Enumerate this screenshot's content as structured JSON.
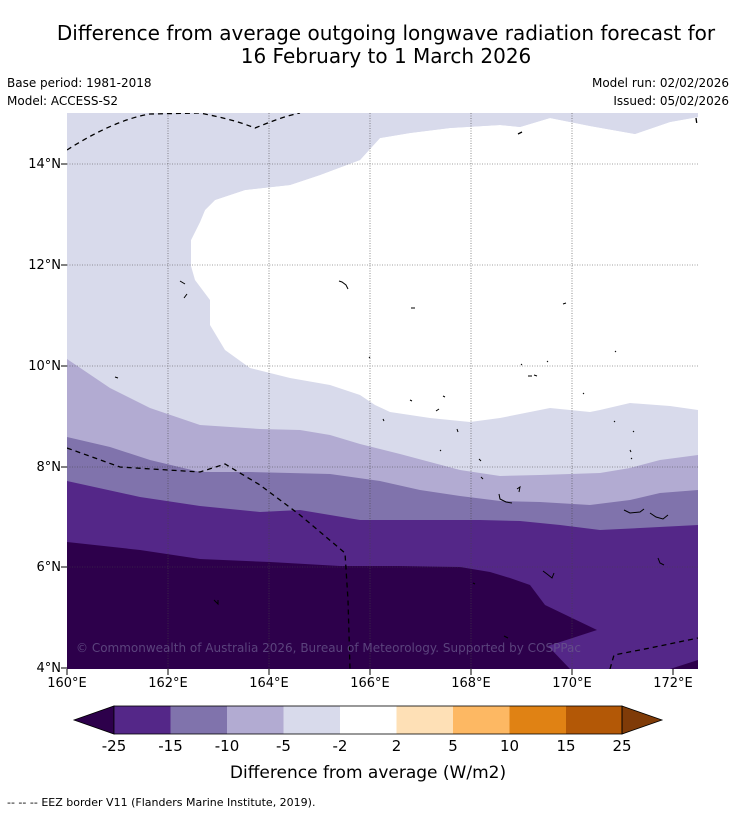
{
  "title": {
    "line1": "Difference from average outgoing longwave radiation forecast for",
    "line2": "16 February to 1 March 2026"
  },
  "meta": {
    "base_period": "Base period: 1981-2018",
    "model": "Model: ACCESS-S2",
    "model_run": "Model run: 02/02/2026",
    "issued": "Issued: 05/02/2026"
  },
  "map": {
    "lon_labels": [
      "160°E",
      "162°E",
      "164°E",
      "166°E",
      "168°E",
      "170°E",
      "172°E"
    ],
    "lat_labels": [
      "14°N",
      "12°N",
      "10°N",
      "8°N",
      "6°N",
      "4°N"
    ],
    "copyright": "© Commonwealth of Australia 2026, Bureau of Meteorology. Supported by COSPPac"
  },
  "legend": {
    "ticks": [
      "-25",
      "-15",
      "-10",
      "-5",
      "-2",
      "2",
      "5",
      "10",
      "15",
      "25"
    ],
    "colors": [
      "#2d004b",
      "#542788",
      "#8073ac",
      "#b2abd2",
      "#d8daeb",
      "#ffffff",
      "#fee0b6",
      "#fdb863",
      "#e08214",
      "#b35806",
      "#7f3b08"
    ],
    "label": "Difference from average (W/m2)"
  },
  "footer": {
    "dash": "-- -- --",
    "text": "EEZ border V11 (Flanders Marine Institute, 2019)."
  }
}
